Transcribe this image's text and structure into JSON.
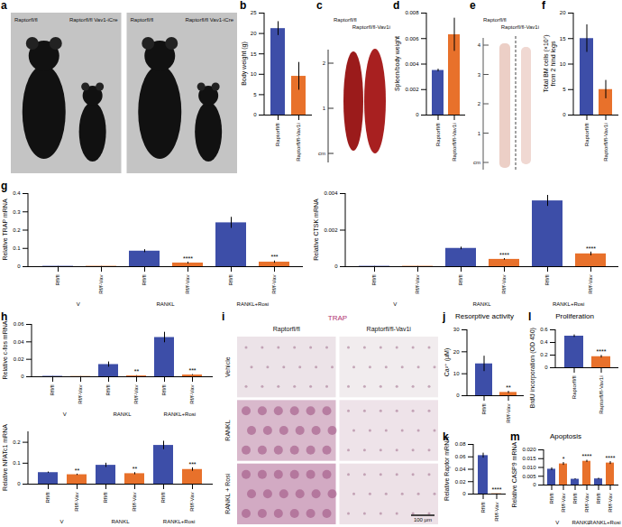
{
  "chart_data": [
    {
      "panel": "b",
      "type": "bar",
      "ylabel": "Body weight (g)",
      "categories": [
        "Raptorfl/fl",
        "Raptorfl/fl-Vav1i"
      ],
      "values": [
        21.2,
        9.5
      ],
      "errors": [
        1.7,
        3.4
      ],
      "colors": [
        "#3d4ea8",
        "#e8712b"
      ],
      "ylim": [
        0,
        25
      ],
      "yticks": [
        0,
        5,
        10,
        15,
        20,
        25
      ]
    },
    {
      "panel": "d",
      "type": "bar",
      "ylabel": "Spleen/body weight",
      "categories": [
        "Raptorfl/fl",
        "Raptorfl/fl-Vav1i"
      ],
      "values": [
        0.0035,
        0.0063
      ],
      "errors": [
        0.0001,
        0.0013
      ],
      "colors": [
        "#3d4ea8",
        "#e8712b"
      ],
      "ylim": [
        0,
        0.008
      ],
      "yticks": [
        0,
        0.002,
        0.004,
        0.006,
        0.008
      ]
    },
    {
      "panel": "f",
      "type": "bar",
      "ylabel": [
        "Total BM cells (×10⁷)",
        "from 2 hind legs"
      ],
      "categories": [
        "Raptorfl/fl",
        "Raptorfl/fl-Vav1i"
      ],
      "values": [
        15,
        5
      ],
      "errors": [
        2.7,
        1.8
      ],
      "colors": [
        "#3d4ea8",
        "#e8712b"
      ],
      "ylim": [
        0,
        20
      ],
      "yticks": [
        0,
        5,
        10,
        15,
        20
      ]
    },
    {
      "panel": "g",
      "type": "bar",
      "ylabel": "Relative TRAP mRNA",
      "categories": [
        "Rfl/fl",
        "Rf/f-Vav",
        "Rfl/fl",
        "Rf/f-Vav",
        "Rfl/fl",
        "Rf/f-Vav"
      ],
      "groups": [
        "V",
        "RANKL",
        "RANKL+Rosi"
      ],
      "values": [
        0.002,
        0.002,
        0.085,
        0.02,
        0.24,
        0.025
      ],
      "errors": [
        0.0005,
        0.0005,
        0.008,
        0.005,
        0.03,
        0.006
      ],
      "significance": [
        null,
        null,
        null,
        "****",
        null,
        "***"
      ],
      "colors": [
        "#3d4ea8",
        "#e8712b",
        "#3d4ea8",
        "#e8712b",
        "#3d4ea8",
        "#e8712b"
      ],
      "ylim": [
        0,
        0.4
      ],
      "yticks": [
        0,
        0.1,
        0.2,
        0.3,
        0.4
      ]
    },
    {
      "type": "bar",
      "ylabel": "Relative CTSK mRNA",
      "categories": [
        "Rfl/fl",
        "Rf/f-Vav",
        "Rfl/fl",
        "Rf/f-Vav",
        "Rfl/fl",
        "Rf/f-Vav"
      ],
      "groups": [
        "V",
        "RANKL",
        "RANKL+Rosi"
      ],
      "values": [
        2e-05,
        2e-05,
        0.001,
        0.0004,
        0.0036,
        0.0007
      ],
      "errors": [
        5e-06,
        5e-06,
        7e-05,
        4e-05,
        0.0003,
        0.0001
      ],
      "significance": [
        null,
        null,
        null,
        "****",
        null,
        "****"
      ],
      "colors": [
        "#3d4ea8",
        "#e8712b",
        "#3d4ea8",
        "#e8712b",
        "#3d4ea8",
        "#e8712b"
      ],
      "ylim": [
        0,
        0.004
      ],
      "yticks": [
        0,
        0.002,
        0.004
      ]
    },
    {
      "panel": "h",
      "type": "bar",
      "ylabel": "Relative c-fos mRNA",
      "categories": [
        "Rfl/fl",
        "Rf/f-Vav",
        "Rfl/fl",
        "Rf/f-Vav",
        "Rfl/fl",
        "Rf/f-Vav"
      ],
      "groups": [
        "V",
        "RANKL",
        "RANKL+Rosi"
      ],
      "values": [
        0.0005,
        0.0003,
        0.014,
        0.001,
        0.045,
        0.002
      ],
      "errors": [
        0.0001,
        0.0001,
        0.003,
        0.0003,
        0.006,
        0.0005
      ],
      "significance": [
        null,
        null,
        null,
        "**",
        null,
        "***"
      ],
      "colors": [
        "#3d4ea8",
        "#e8712b",
        "#3d4ea8",
        "#e8712b",
        "#3d4ea8",
        "#e8712b"
      ],
      "ylim": [
        0,
        0.06
      ],
      "yticks": [
        0,
        0.02,
        0.04,
        0.06
      ]
    },
    {
      "type": "bar",
      "ylabel": "Relative NFATc1 mRNA",
      "categories": [
        "Rfl/fl",
        "Rf/f-Vav",
        "Rfl/fl",
        "Rf/f-Vav",
        "Rfl/fl",
        "Rf/f-Vav"
      ],
      "groups": [
        "V",
        "RANKL",
        "RANKL+Rosi"
      ],
      "values": [
        0.055,
        0.045,
        0.09,
        0.05,
        0.185,
        0.07
      ],
      "errors": [
        0.003,
        0.003,
        0.01,
        0.005,
        0.02,
        0.008
      ],
      "significance": [
        null,
        "**",
        null,
        "**",
        null,
        "***"
      ],
      "colors": [
        "#3d4ea8",
        "#e8712b",
        "#3d4ea8",
        "#e8712b",
        "#3d4ea8",
        "#e8712b"
      ],
      "ylim": [
        0,
        0.25
      ],
      "yticks": [
        0,
        0.1,
        0.2
      ]
    },
    {
      "panel": "j",
      "type": "bar",
      "title": "Resorptive activity",
      "ylabel": "Ca²⁺ (µM)",
      "categories": [
        "Rfl/fl",
        "Rf/f-Vav"
      ],
      "values": [
        14.5,
        1.5
      ],
      "errors": [
        3.5,
        0.5
      ],
      "significance": [
        null,
        "**"
      ],
      "colors": [
        "#3d4ea8",
        "#e8712b"
      ],
      "ylim": [
        0,
        30
      ],
      "yticks": [
        0,
        10,
        20,
        30
      ]
    },
    {
      "panel": "k",
      "type": "bar",
      "ylabel": "Relative Raptor mRNA",
      "categories": [
        "Rfl/fl",
        "Rf/f-Vav"
      ],
      "values": [
        0.062,
        0.0005
      ],
      "errors": [
        0.004,
        0.0001
      ],
      "significance": [
        null,
        "****"
      ],
      "colors": [
        "#3d4ea8",
        "#e8712b"
      ],
      "ylim": [
        0,
        0.08
      ],
      "yticks": [
        0,
        0.02,
        0.04,
        0.06,
        0.08
      ]
    },
    {
      "panel": "l",
      "type": "bar",
      "title": "Proliferation",
      "ylabel": "BrdU incorporation (OD 450)",
      "categories": [
        "Raptorfl/fl",
        "Raptorfl/fl-Vav1i"
      ],
      "values": [
        0.5,
        0.175
      ],
      "errors": [
        0.02,
        0.02
      ],
      "significance": [
        null,
        "****"
      ],
      "colors": [
        "#3d4ea8",
        "#e8712b"
      ],
      "ylim": [
        0,
        0.6
      ],
      "yticks": [
        0,
        0.2,
        0.4,
        0.6
      ]
    },
    {
      "panel": "m",
      "type": "bar",
      "title": "Apoptosis",
      "ylabel": "Relative CASP9 mRNA",
      "categories": [
        "Rfl/fl",
        "Rf/f-Vav",
        "Rfl/fl",
        "Rf/f-Vav",
        "Rfl/fl",
        "Rf/f-Vav"
      ],
      "groups": [
        "V",
        "RANKL",
        "RANKL+Rosi"
      ],
      "values": [
        0.009,
        0.012,
        0.0033,
        0.0135,
        0.0035,
        0.0125
      ],
      "errors": [
        0.0008,
        0.0008,
        0.0003,
        0.0006,
        0.0004,
        0.0008
      ],
      "significance": [
        null,
        "*",
        null,
        "****",
        null,
        "****"
      ],
      "colors": [
        "#3d4ea8",
        "#e8712b",
        "#3d4ea8",
        "#e8712b",
        "#3d4ea8",
        "#e8712b"
      ],
      "ylim": [
        0,
        0.02
      ],
      "yticks": [
        0,
        0.005,
        {
          "value": 0.01,
          "label": "0.010"
        },
        0.015,
        {
          "value": 0.02,
          "label": "0.020"
        }
      ]
    }
  ],
  "images": [
    {
      "panel": "a",
      "photos": [
        [
          "Raptorfl/fl",
          "Raptorfl/fl Vav1-iCre"
        ],
        [
          "Raptorfl/fl",
          "Raptorfl/fl Vav1-iCre"
        ]
      ]
    },
    {
      "panel": "c",
      "labels": [
        "Raptorfl/fl",
        "Raptorfl/fl-Vav1i"
      ],
      "ruler": [
        "2",
        "1",
        "cm"
      ]
    },
    {
      "panel": "e",
      "labels": [
        "Raptorfl/fl",
        "Raptorfl/fl-Vav1i"
      ],
      "ruler": [
        "4",
        "3",
        "2",
        "1",
        "cm"
      ]
    },
    {
      "panel": "i",
      "title": "TRAP",
      "columns": [
        "Raptorfl/fl",
        "Raptorfl/fl-Vav1i"
      ],
      "rows": [
        "Vehicle",
        "RANKL",
        "RANKL + Rosi"
      ],
      "scale_bar": "100 µm"
    }
  ]
}
